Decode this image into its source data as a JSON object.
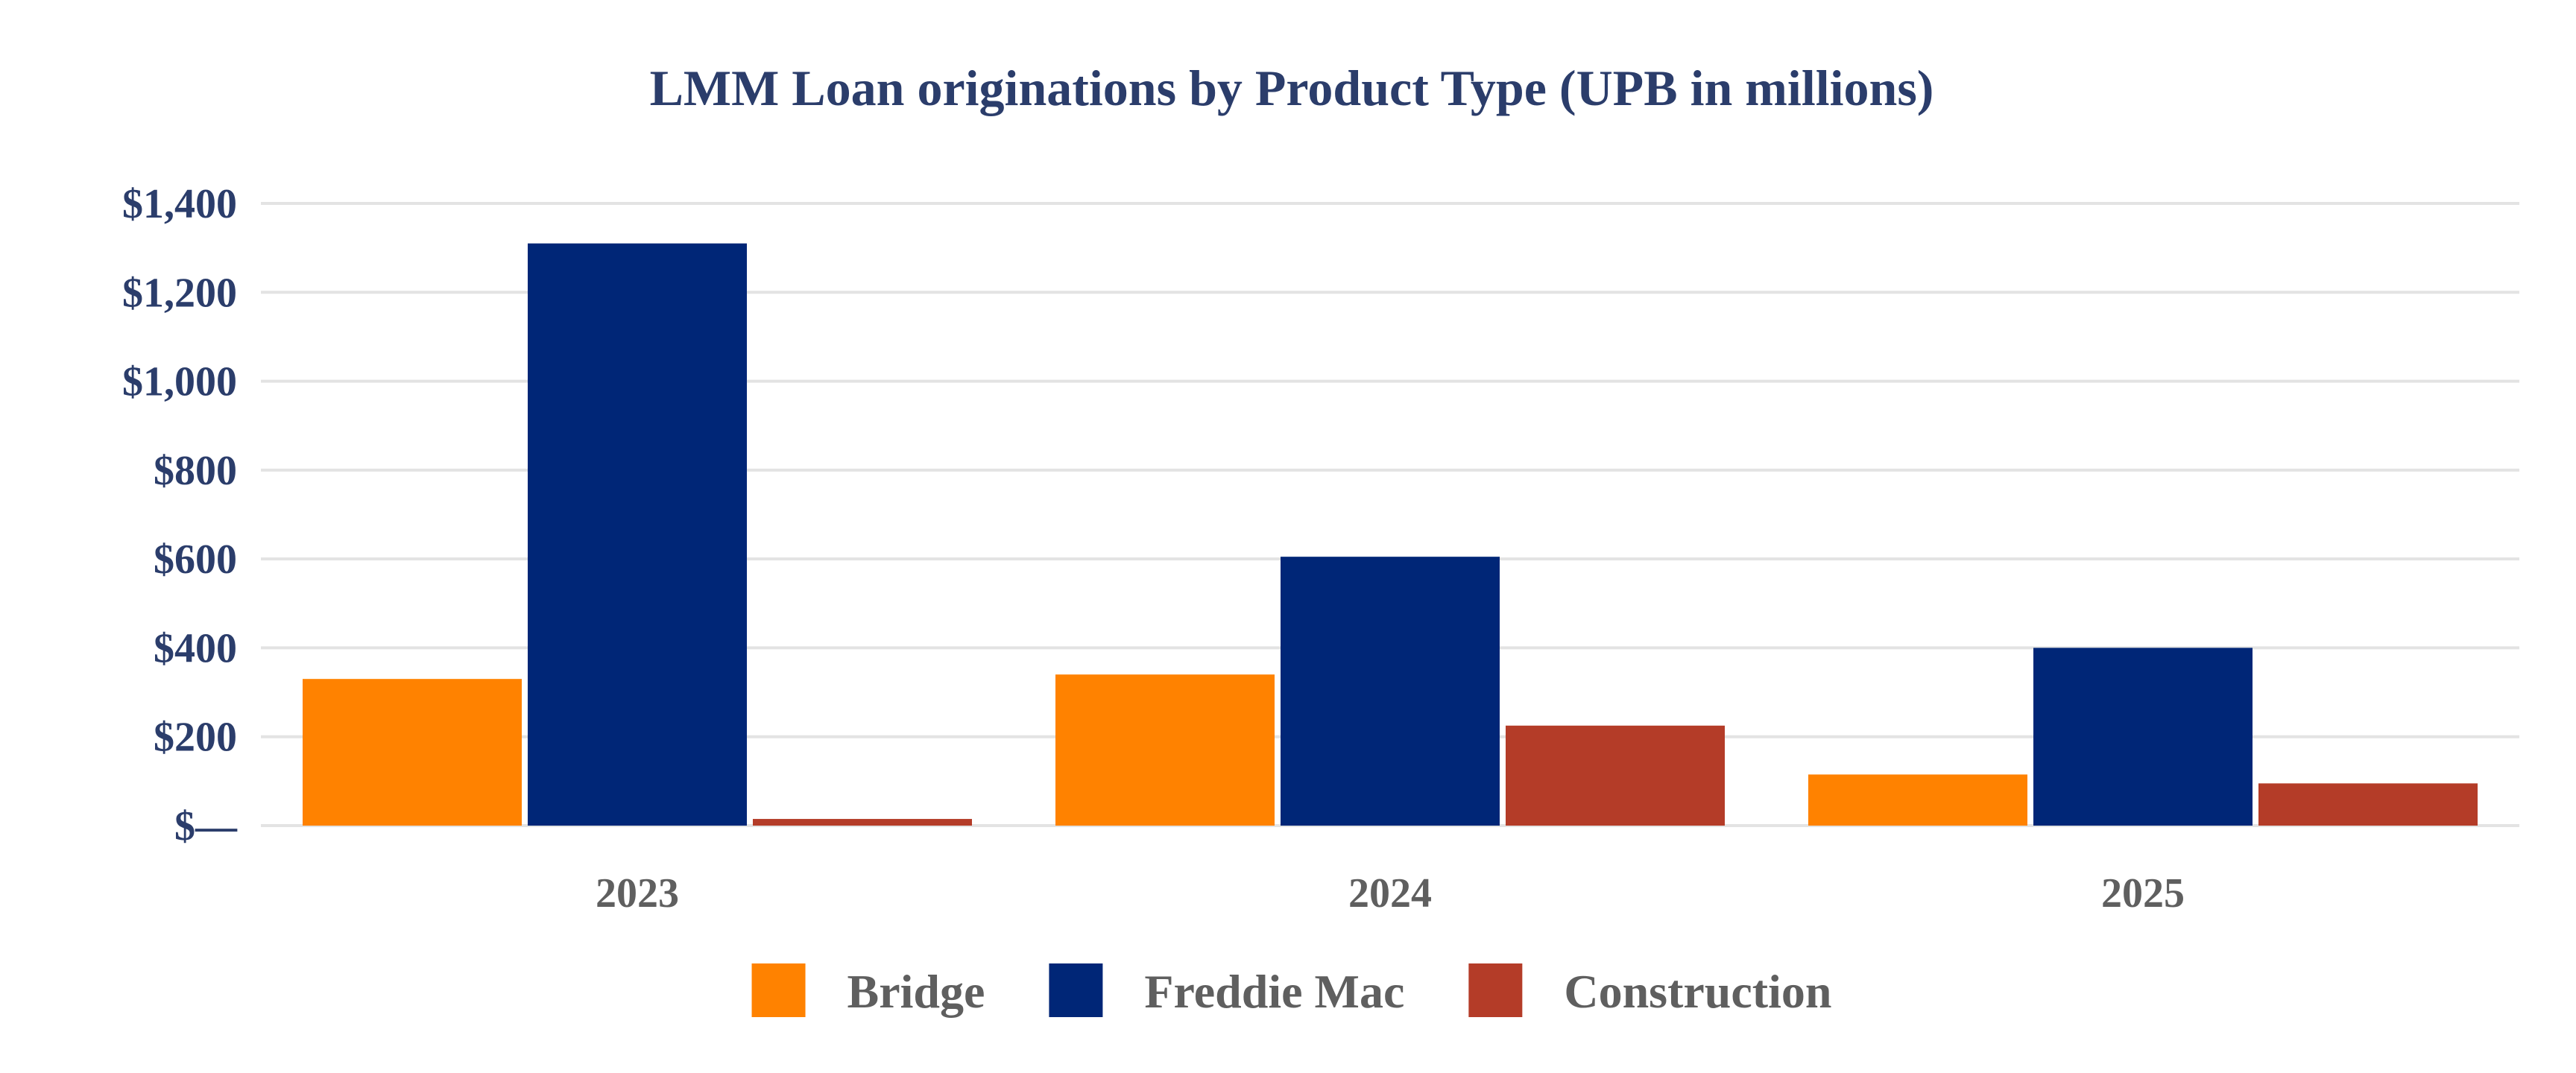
{
  "chart_data": {
    "type": "bar",
    "title": "LMM Loan originations by Product Type (UPB in millions)",
    "categories": [
      "2023",
      "2024",
      "2025"
    ],
    "series": [
      {
        "name": "Bridge",
        "color": "#ff8200",
        "values": [
          330,
          340,
          115
        ]
      },
      {
        "name": "Freddie Mac",
        "color": "#002677",
        "values": [
          1310,
          605,
          400
        ]
      },
      {
        "name": "Construction",
        "color": "#b43c28",
        "values": [
          15,
          225,
          95
        ]
      }
    ],
    "yticks": [
      0,
      200,
      400,
      600,
      800,
      1000,
      1200,
      1400
    ],
    "ytick_labels": [
      "$—",
      "$200",
      "$400",
      "$600",
      "$800",
      "$1,000",
      "$1,200",
      "$1,400"
    ],
    "ylim": [
      0,
      1400
    ],
    "grid": true,
    "legend_position": "bottom"
  }
}
